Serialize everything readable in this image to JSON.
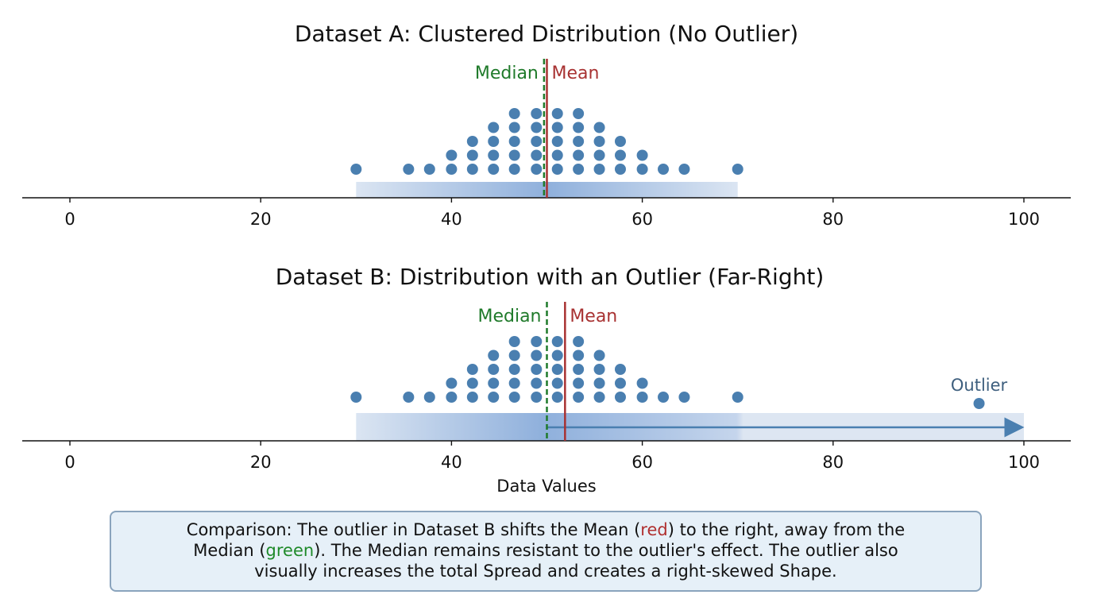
{
  "chart_data": [
    {
      "type": "scatter",
      "subtype": "dot-plot",
      "title": "Dataset A: Clustered Distribution (No Outlier)",
      "xlim": [
        0,
        100
      ],
      "xticks": [
        0,
        20,
        40,
        60,
        80,
        100
      ],
      "xlabel": "",
      "columns": {
        "x": [
          30,
          35.5,
          37.7,
          40,
          42.2,
          44.4,
          46.6,
          48.9,
          51.1,
          53.3,
          55.5,
          57.7,
          60,
          62.2,
          64.4,
          70
        ],
        "counts": [
          1,
          1,
          1,
          2,
          3,
          4,
          5,
          5,
          5,
          5,
          4,
          3,
          2,
          1,
          1,
          1
        ]
      },
      "median": {
        "label": "Median",
        "value": 49.7,
        "color": "#1f7a2a",
        "style": "dashed"
      },
      "mean": {
        "label": "Mean",
        "value": 50,
        "color": "#a83232",
        "style": "solid"
      },
      "spread_band": [
        30,
        70
      ]
    },
    {
      "type": "scatter",
      "subtype": "dot-plot",
      "title": "Dataset B: Distribution with an Outlier (Far-Right)",
      "xlim": [
        0,
        100
      ],
      "xticks": [
        0,
        20,
        40,
        60,
        80,
        100
      ],
      "xlabel": "Data Values",
      "columns": {
        "x": [
          30,
          35.5,
          37.7,
          40,
          42.2,
          44.4,
          46.6,
          48.9,
          51.1,
          53.3,
          55.5,
          57.7,
          60,
          62.2,
          64.4,
          70
        ],
        "counts": [
          1,
          1,
          1,
          2,
          3,
          4,
          5,
          5,
          5,
          5,
          4,
          3,
          2,
          1,
          1,
          1
        ]
      },
      "outlier": {
        "label": "Outlier",
        "value": 95.3
      },
      "median": {
        "label": "Median",
        "value": 50,
        "color": "#1f7a2a",
        "style": "dashed"
      },
      "mean": {
        "label": "Mean",
        "value": 51.9,
        "color": "#a83232",
        "style": "solid"
      },
      "spread_band": [
        30,
        100
      ],
      "arrow": [
        50,
        100
      ]
    }
  ],
  "colors": {
    "dots": "#4a7fb0",
    "band": "#8fb0dc"
  },
  "note": {
    "prefix": "Comparison: The outlier in Dataset B shifts the Mean (",
    "red": "red",
    "mid1": ") to the right, away from the",
    "line2a": "Median (",
    "green": "green",
    "line2b": "). The Median remains resistant to the outlier's effect. The outlier also",
    "line3": "visually increases the total Spread and creates a right-skewed Shape."
  }
}
